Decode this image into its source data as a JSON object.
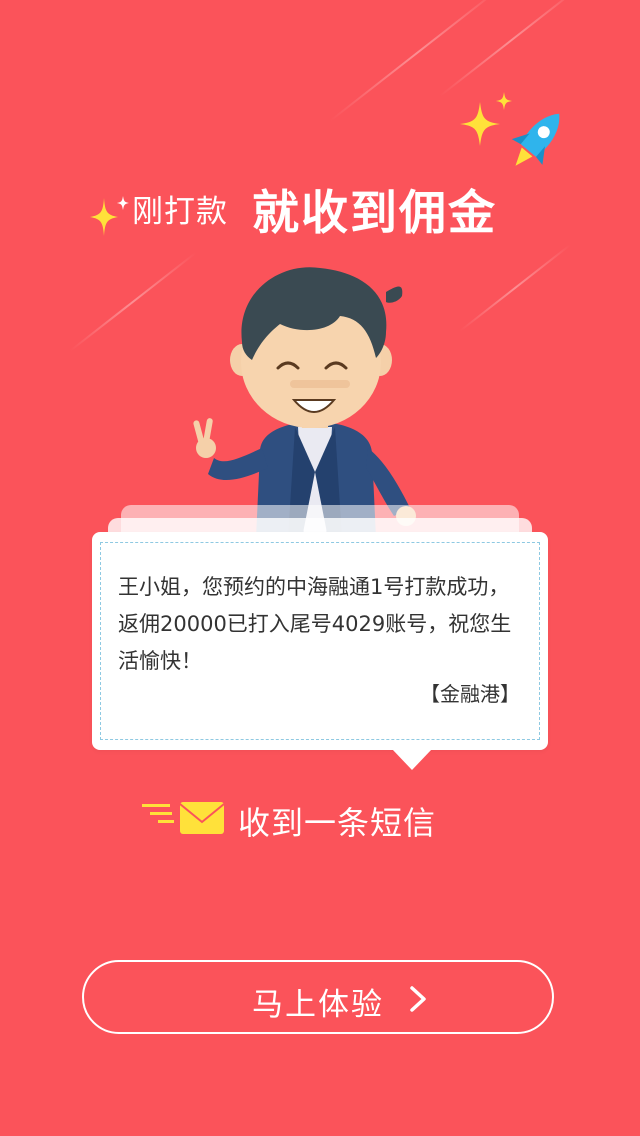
{
  "colors": {
    "background": "#fb535a",
    "accent_yellow": "#ffe13a",
    "rocket_blue": "#2fb4ec",
    "card_border": "#8ec9e2",
    "text_dark": "#333333"
  },
  "header": {
    "subtitle": "刚打款",
    "title": "就收到佣金"
  },
  "message": {
    "body": "王小姐，您预约的中海融通1号打款成功，返佣20000已打入尾号4029账号，祝您生活愉快！",
    "signature": "【金融港】"
  },
  "notice": {
    "label": "收到一条短信",
    "icon": "envelope-icon"
  },
  "cta": {
    "label": "马上体验",
    "icon": "chevron-right-icon"
  },
  "icons": {
    "rocket": "rocket-icon",
    "sparkle": "sparkle-icon",
    "character": "businessman-illustration"
  }
}
